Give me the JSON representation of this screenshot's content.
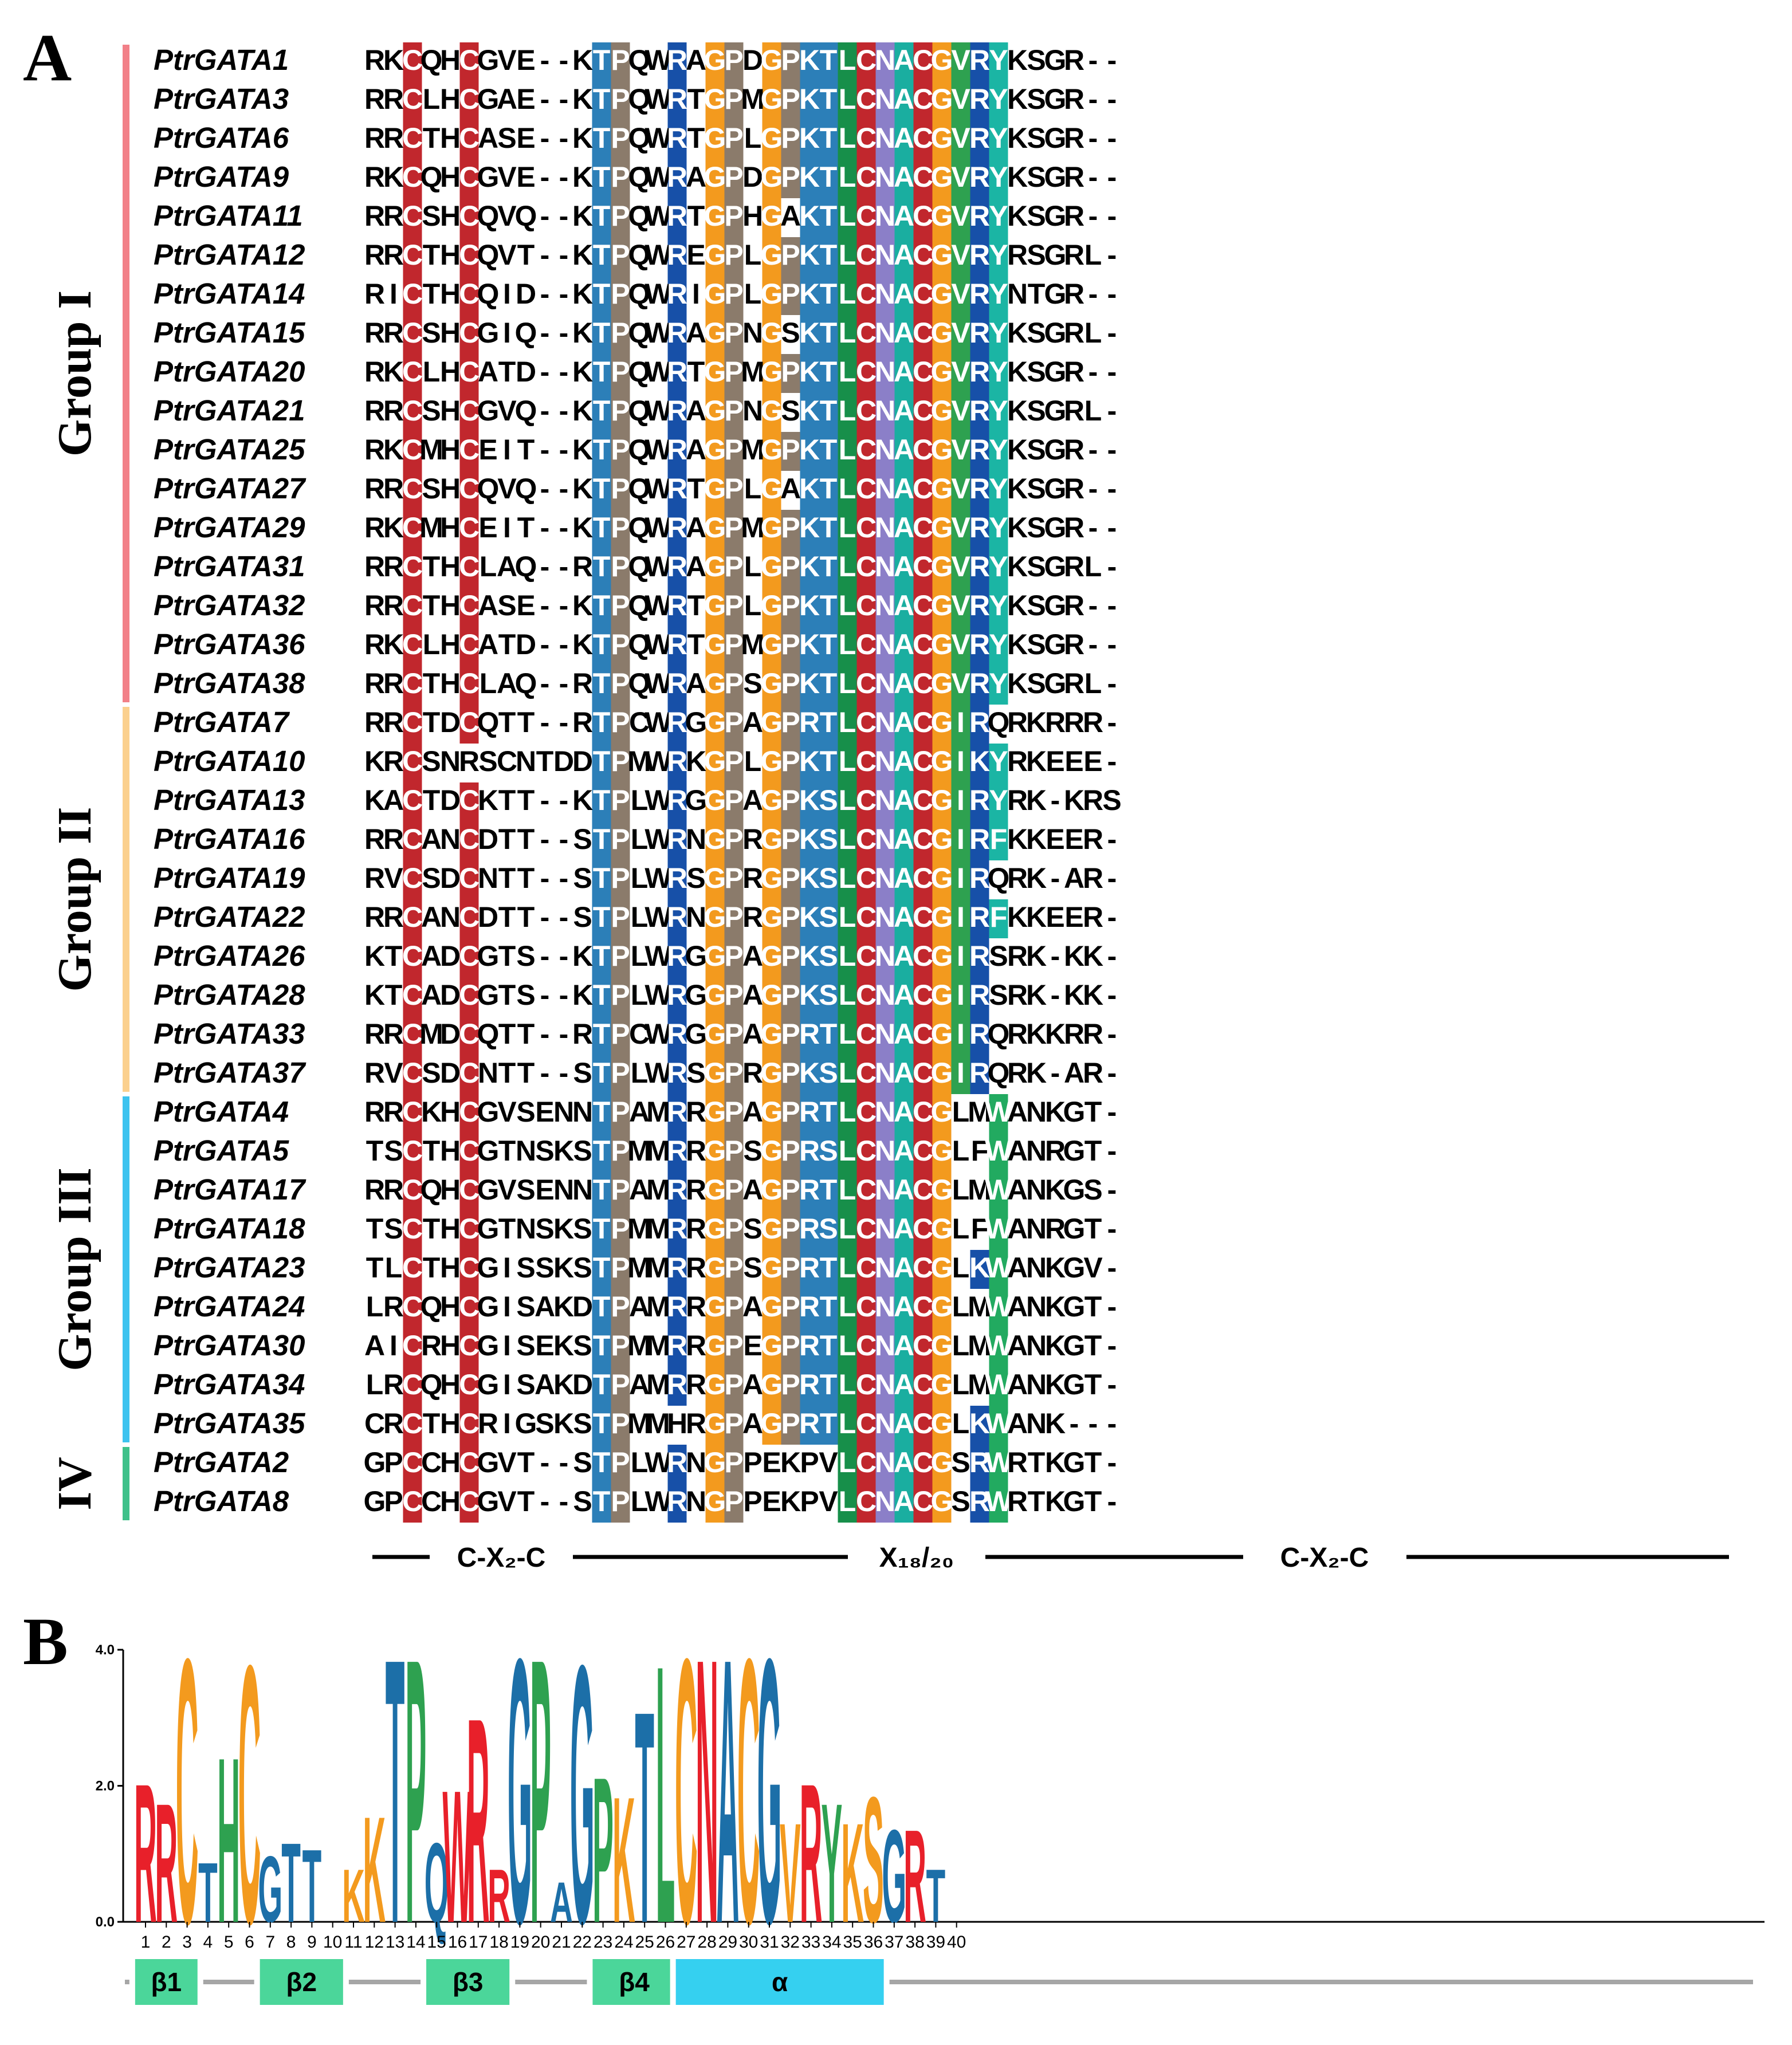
{
  "panel_a": {
    "label": "A",
    "groups": [
      {
        "name": "Group I",
        "color": "#f28088",
        "start": 0,
        "end": 16
      },
      {
        "name": "Group II",
        "color": "#fbd08e",
        "start": 17,
        "end": 26
      },
      {
        "name": "Group III",
        "color": "#3dc3ef",
        "start": 27,
        "end": 35
      },
      {
        "name": "IV",
        "color": "#3fc18a",
        "start": 36,
        "end": 37
      }
    ],
    "sequences": [
      {
        "name": "PtrGATA1",
        "seq": "RKCQHCGVE--KTPQWRAGPDGPKTLCNACGVRYKSGR--"
      },
      {
        "name": "PtrGATA3",
        "seq": "RRCLHCGAE--KTPQWRTGPMGPKTLCNACGVRYKSGR--"
      },
      {
        "name": "PtrGATA6",
        "seq": "RRCTHCASE--KTPQWRTGPLGPKTLCNACGVRYKSGR--"
      },
      {
        "name": "PtrGATA9",
        "seq": "RKCQHCGVE--KTPQWRAGPDGPKTLCNACGVRYKSGR--"
      },
      {
        "name": "PtrGATA11",
        "seq": "RRCSHCQVQ--KTPQWRTGPHGAKTLCNACGVRYKSGR--"
      },
      {
        "name": "PtrGATA12",
        "seq": "RRCTHCQVT--KTPQWREGPLGPKTLCNACGVRYRSGRL-"
      },
      {
        "name": "PtrGATA14",
        "seq": "RICTHCQID--KTPQWRIGPLGPKTLCNACGVRYNTGR--"
      },
      {
        "name": "PtrGATA15",
        "seq": "RRCSHCGIQ--KTPQWRAGPNGSKTLCNACGVRYKSGRL-"
      },
      {
        "name": "PtrGATA20",
        "seq": "RKCLHCATD--KTPQWRTGPMGPKTLCNACGVRYKSGR--"
      },
      {
        "name": "PtrGATA21",
        "seq": "RRCSHCGVQ--KTPQWRAGPNGSKTLCNACGVRYKSGRL-"
      },
      {
        "name": "PtrGATA25",
        "seq": "RKCMHCEIT--KTPQWRAGPMGPKTLCNACGVRYKSGR--"
      },
      {
        "name": "PtrGATA27",
        "seq": "RRCSHCQVQ--KTPQWRTGPLGAKTLCNACGVRYKSGR--"
      },
      {
        "name": "PtrGATA29",
        "seq": "RKCMHCEIT--KTPQWRAGPMGPKTLCNACGVRYKSGR--"
      },
      {
        "name": "PtrGATA31",
        "seq": "RRCTHCLAQ--RTPQWRAGPLGPKTLCNACGVRYKSGRL-"
      },
      {
        "name": "PtrGATA32",
        "seq": "RRCTHCASE--KTPQWRTGPLGPKTLCNACGVRYKSGR--"
      },
      {
        "name": "PtrGATA36",
        "seq": "RKCLHCATD--KTPQWRTGPMGPKTLCNACGVRYKSGR--"
      },
      {
        "name": "PtrGATA38",
        "seq": "RRCTHCLAQ--RTPQWRAGPSGPKTLCNACGVRYKSGRL-"
      },
      {
        "name": "PtrGATA7",
        "seq": "RRCTDCQTT--RTPCWRGGPAGPRTLCNACGIRQRKRRR-"
      },
      {
        "name": "PtrGATA10",
        "seq": "KRCSNRSCNTDDTPMWRKGPLGPKTLCNACGIKYRKEEE-"
      },
      {
        "name": "PtrGATA13",
        "seq": "KACTDCKTT--KTPLWRGGPAGPKSLCNACGIRYRK-KRS"
      },
      {
        "name": "PtrGATA16",
        "seq": "RRCANCDTT--STPLWRNGPRGPKSLCNACGIRFKKEER-"
      },
      {
        "name": "PtrGATA19",
        "seq": "RVCSDCNTT--STPLWRSGPRGPKSLCNACGIRQRK-AR-"
      },
      {
        "name": "PtrGATA22",
        "seq": "RRCANCDTT--STPLWRNGPRGPKSLCNACGIRFKKEER-"
      },
      {
        "name": "PtrGATA26",
        "seq": "KTCADCGTS--KTPLWRGGPAGPKSLCNACGIRSRK-KK-"
      },
      {
        "name": "PtrGATA28",
        "seq": "KTCADCGTS--KTPLWRGGPAGPKSLCNACGIRSRK-KK-"
      },
      {
        "name": "PtrGATA33",
        "seq": "RRCMDCQTT--RTPCWRGGPAGPRTLCNACGIRQRKKRR-"
      },
      {
        "name": "PtrGATA37",
        "seq": "RVCSDCNTT--STPLWRSGPRGPKSLCNACGIRQRK-AR-"
      },
      {
        "name": "PtrGATA4",
        "seq": "RRCKHCGVSENNTPAMRRGPAGPRTLCNACGLMWANKGT-"
      },
      {
        "name": "PtrGATA5",
        "seq": "TSCTHCGTNSKSTPMMRRGPSGPRSLCNACGLFWANRGT-"
      },
      {
        "name": "PtrGATA17",
        "seq": "RRCQHCGVSENNTPAMRRGPAGPRTLCNACGLMWANKGS-"
      },
      {
        "name": "PtrGATA18",
        "seq": "TSCTHCGTNSKSTPMMRRGPSGPRSLCNACGLFWANRGT-"
      },
      {
        "name": "PtrGATA23",
        "seq": "TLCTHCGISSKSTPMMRRGPSGPRTLCNACGLKWANKGV-"
      },
      {
        "name": "PtrGATA24",
        "seq": "LRCQHCGISAKDTPAMRRGPAGPRTLCNACGLMWANKGT-"
      },
      {
        "name": "PtrGATA30",
        "seq": "AICRHCGISEKSTPMMRRGPEGPRTLCNACGLMWANKGT-"
      },
      {
        "name": "PtrGATA34",
        "seq": "LRCQHCGISAKDTPAMRRGPAGPRTLCNACGLMWANKGT-"
      },
      {
        "name": "PtrGATA35",
        "seq": "CRCTHCRIGSKSTPMMHRGPAGPRTLCNACGLKWANK---"
      },
      {
        "name": "PtrGATA2",
        "seq": "GPCCHCGVT--STPLWRNGPPEKPVLCNACGSRWRTKGT-"
      },
      {
        "name": "PtrGATA8",
        "seq": "GPCCHCGVT--STPLWRNGPPEKPVLCNACGSRWRTKGT-"
      }
    ],
    "segments": [
      "C-X₂-C",
      "X₁₈/₂₀",
      "C-X₂-C"
    ],
    "colors": {
      "cys_red": "#c1272d",
      "thr_blue": "#2c7fb8",
      "pro_taupe": "#8b7b6b",
      "arg_navy": "#1750a8",
      "gly_orange": "#f39a1e",
      "leu_green": "#178f4a",
      "asn_lavender": "#8b7fc8",
      "ala_teal": "#1aaea0",
      "val_green": "#2ea150",
      "tyr_cyan": "#1bb5a4",
      "trp_green": "#22aa60"
    }
  },
  "panel_b": {
    "label": "B",
    "y_axis": {
      "max": 4.0,
      "ticks": [
        "4.0",
        "2.0",
        "0.0"
      ]
    },
    "positions": [
      "1",
      "2",
      "3",
      "4",
      "5",
      "6",
      "7",
      "8",
      "9",
      "10",
      "11",
      "12",
      "13",
      "14",
      "15",
      "16",
      "17",
      "18",
      "19",
      "20",
      "21",
      "22",
      "23",
      "24",
      "25",
      "26",
      "27",
      "28",
      "29",
      "30",
      "31",
      "32",
      "33",
      "34",
      "35",
      "36",
      "37",
      "38",
      "39",
      "40"
    ],
    "logo_letters": [
      "R",
      "R",
      "C",
      "T",
      "H",
      "C",
      "G",
      "T",
      "T",
      "",
      "K",
      "K",
      "T",
      "P",
      "Q",
      "W",
      "R",
      "R",
      "G",
      "P",
      "A",
      "G",
      "P",
      "K",
      "T",
      "L",
      "C",
      "N",
      "A",
      "C",
      "G",
      "V",
      "R",
      "Y",
      "K",
      "S",
      "G",
      "R",
      "T",
      ""
    ],
    "logo_heights": [
      2.1,
      1.8,
      4.0,
      0.9,
      2.5,
      3.9,
      1.0,
      1.2,
      1.1,
      0.3,
      0.8,
      1.6,
      4.0,
      4.0,
      1.2,
      2.0,
      3.1,
      0.8,
      4.0,
      4.0,
      0.6,
      3.9,
      2.2,
      1.9,
      3.2,
      3.9,
      4.0,
      4.0,
      4.0,
      4.0,
      4.0,
      1.5,
      2.1,
      1.8,
      1.5,
      1.9,
      1.4,
      1.4,
      0.8,
      0.1
    ],
    "secondary_structure": [
      {
        "label": "β1",
        "type": "sheet",
        "start": 1,
        "end": 3
      },
      {
        "label": "β2",
        "type": "sheet",
        "start": 7,
        "end": 10
      },
      {
        "label": "β3",
        "type": "sheet",
        "start": 15,
        "end": 18
      },
      {
        "label": "β4",
        "type": "sheet",
        "start": 23,
        "end": 26
      },
      {
        "label": "α",
        "type": "helix",
        "start": 27,
        "end": 36
      }
    ]
  }
}
